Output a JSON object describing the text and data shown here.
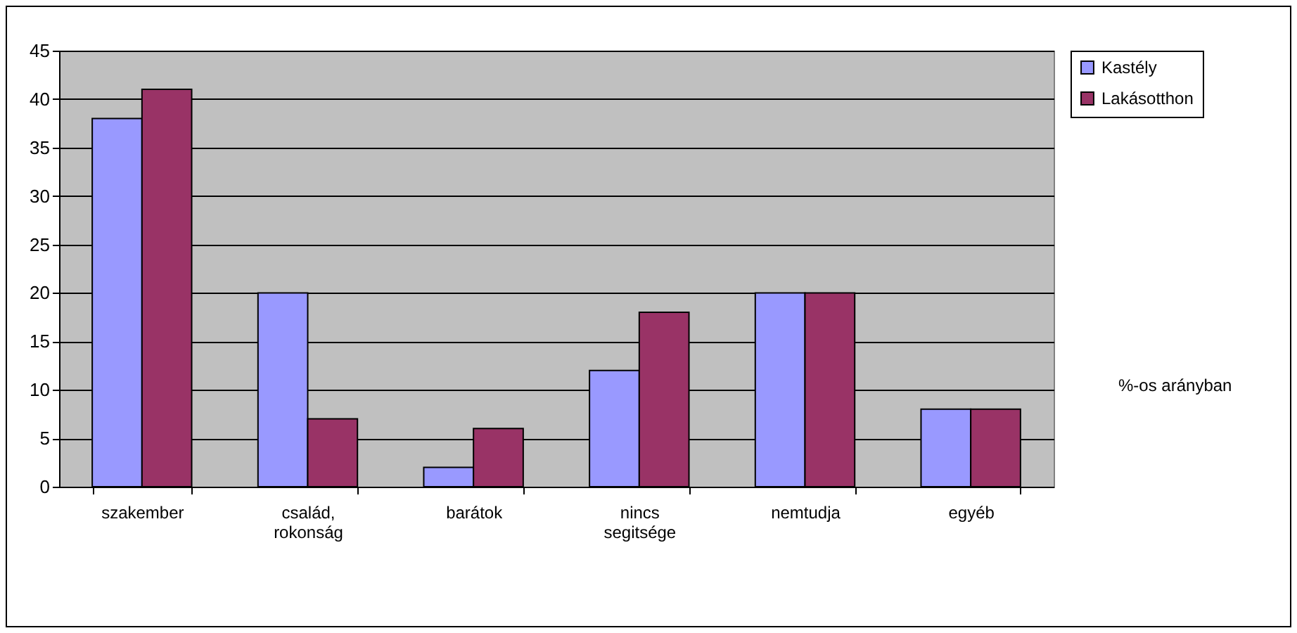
{
  "chart_data": {
    "type": "bar",
    "categories": [
      "szakember",
      "család, rokonság",
      "barátok",
      "nincs segitsége",
      "nemtudja",
      "egyéb"
    ],
    "series": [
      {
        "name": "Kastély",
        "color": "#9999ff",
        "values": [
          38,
          20,
          2,
          12,
          20,
          8
        ]
      },
      {
        "name": "Lakásotthon",
        "color": "#993366",
        "values": [
          41,
          7,
          6,
          18,
          20,
          8
        ]
      }
    ],
    "ylim": [
      0,
      45
    ],
    "yticks": [
      0,
      5,
      10,
      15,
      20,
      25,
      30,
      35,
      40,
      45
    ],
    "grid": "y",
    "legend": "right",
    "annotations": [
      "%-os arányban"
    ]
  }
}
